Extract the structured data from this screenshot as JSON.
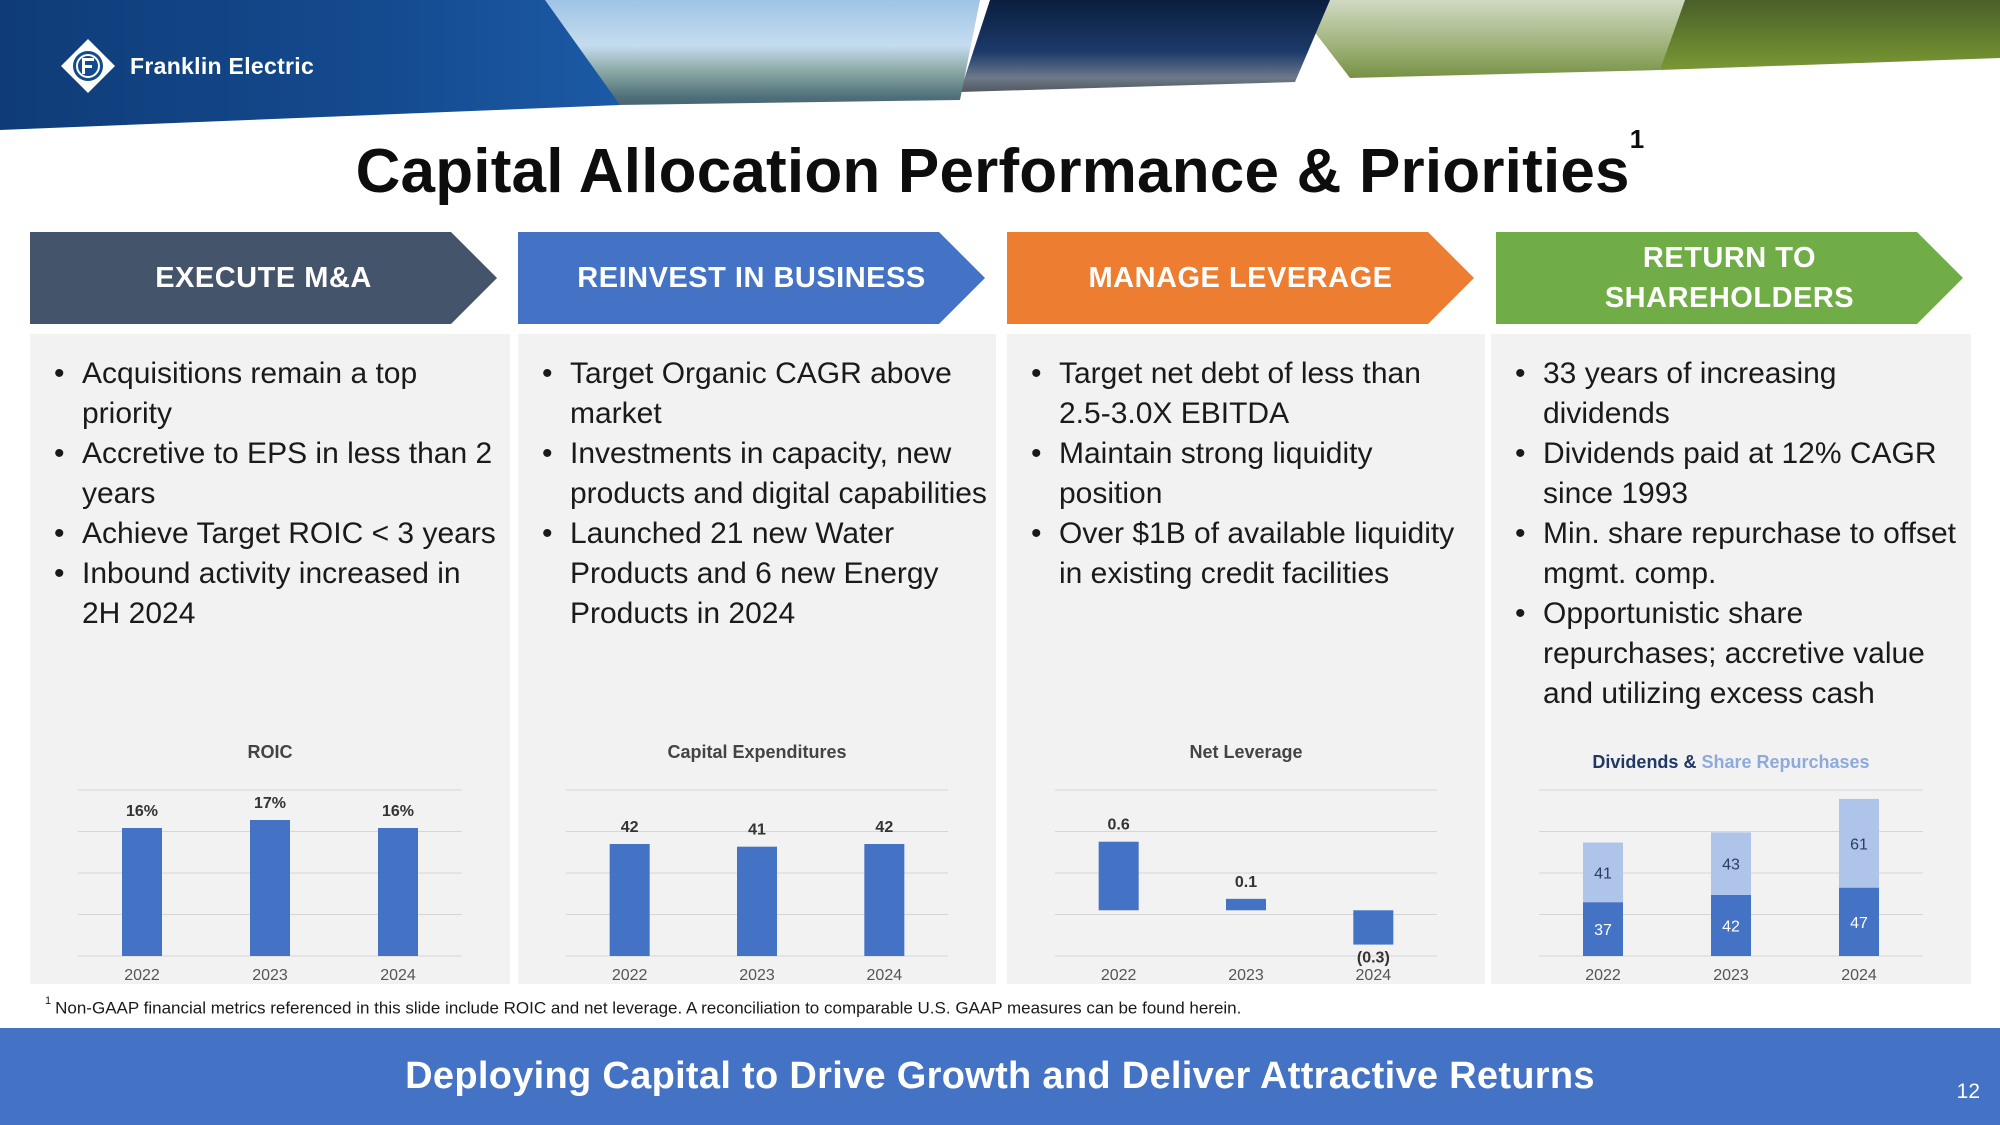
{
  "header": {
    "logo_text": "Franklin Electric",
    "logo_icon": "franklin-electric-logo-icon",
    "photos": [
      "water-treatment-photo",
      "fuel-station-photo",
      "irrigation-field-photo",
      "sprinkler-photo"
    ]
  },
  "title": {
    "text": "Capital Allocation Performance & Priorities",
    "footnote_marker": "1"
  },
  "columns": [
    {
      "heading": "EXECUTE M&A",
      "color": "#44546a",
      "bullets": [
        "Acquisitions remain a top priority",
        "Accretive to EPS in less than 2 years",
        "Achieve Target ROIC < 3 years",
        "Inbound activity increased in 2H 2024"
      ]
    },
    {
      "heading": "REINVEST IN BUSINESS",
      "color": "#4472c4",
      "bullets": [
        "Target Organic CAGR above market",
        "Investments in capacity, new products and digital capabilities",
        "Launched 21 new Water Products and 6 new Energy Products in 2024"
      ]
    },
    {
      "heading": "MANAGE LEVERAGE",
      "color": "#ed7d31",
      "bullets": [
        "Target net debt of less than 2.5-3.0X EBITDA",
        "Maintain strong liquidity position",
        "Over $1B of available liquidity in existing credit facilities"
      ]
    },
    {
      "heading_line1": "RETURN TO",
      "heading_line2": "SHAREHOLDERS",
      "color": "#70ad47",
      "bullets": [
        "33 years of increasing dividends",
        "Dividends paid at 12% CAGR since 1993",
        "Min. share repurchase to offset mgmt. comp.",
        "Opportunistic share repurchases; accretive value and utilizing excess cash"
      ]
    }
  ],
  "chart_data": [
    {
      "type": "bar",
      "title": "ROIC",
      "categories": [
        "2022",
        "2023",
        "2024"
      ],
      "values": [
        16,
        17,
        16
      ],
      "labels": [
        "16%",
        "17%",
        "16%"
      ],
      "ylim": [
        0,
        20
      ],
      "grid": true,
      "color": "#4472c4"
    },
    {
      "type": "bar",
      "title": "Capital Expenditures",
      "categories": [
        "2022",
        "2023",
        "2024"
      ],
      "values": [
        42,
        41,
        42
      ],
      "labels": [
        "42",
        "41",
        "42"
      ],
      "ylim": [
        0,
        60
      ],
      "grid": true,
      "color": "#4472c4"
    },
    {
      "type": "bar",
      "title": "Net Leverage",
      "categories": [
        "2022",
        "2023",
        "2024"
      ],
      "values": [
        0.6,
        0.1,
        -0.3
      ],
      "labels": [
        "0.6",
        "0.1",
        "(0.3)"
      ],
      "ylim": [
        -0.4,
        1.0
      ],
      "grid": true,
      "color": "#4472c4"
    },
    {
      "type": "bar",
      "stacked": true,
      "title_part1": "Dividends",
      "title_joiner": " & ",
      "title_part2": "Share Repurchases",
      "categories": [
        "2022",
        "2023",
        "2024"
      ],
      "series": [
        {
          "name": "Dividends",
          "values": [
            37,
            42,
            47
          ],
          "color": "#4472c4"
        },
        {
          "name": "Share Repurchases",
          "values": [
            41,
            43,
            61
          ],
          "color": "#aec4e8"
        }
      ],
      "ylim": [
        0,
        110
      ],
      "grid": true
    }
  ],
  "footnote": {
    "marker": "1",
    "text": "Non-GAAP financial metrics referenced in this slide include ROIC and net leverage. A reconciliation to comparable U.S. GAAP measures can be found herein."
  },
  "footer": {
    "tagline": "Deploying Capital to Drive Growth and Deliver Attractive Returns",
    "page_number": "12"
  }
}
